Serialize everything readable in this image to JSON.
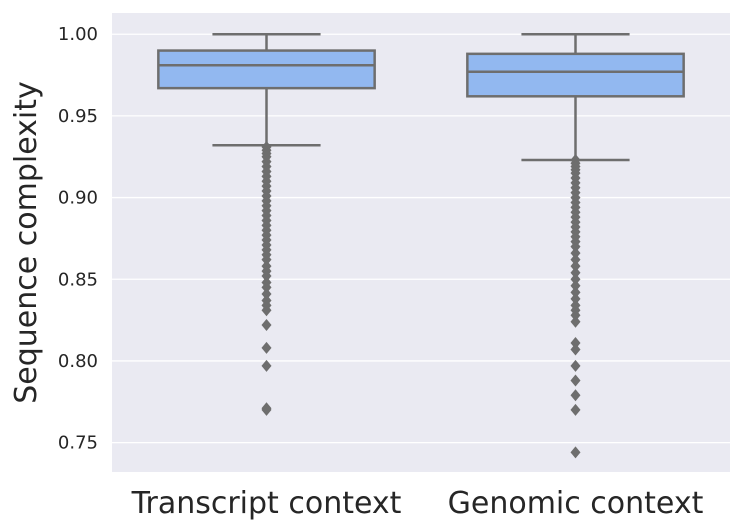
{
  "chart_data": {
    "type": "box",
    "title": "",
    "xlabel": "",
    "ylabel": "Sequence complexity",
    "ylim": [
      0.732,
      1.013
    ],
    "yticks": [
      "0.75",
      "0.80",
      "0.85",
      "0.90",
      "0.95",
      "1.00"
    ],
    "grid": true,
    "colors": {
      "plot_background": "#EAEAF2",
      "grid": "#FFFFFF",
      "box_fill": "#92B8F0",
      "box_line": "#6E6E6E"
    },
    "series": [
      {
        "category": "Transcript context",
        "whisker_low": 0.932,
        "q1": 0.967,
        "median": 0.981,
        "q3": 0.99,
        "whisker_high": 1.0,
        "outliers": [
          0.931,
          0.929,
          0.927,
          0.925,
          0.922,
          0.919,
          0.916,
          0.913,
          0.91,
          0.907,
          0.904,
          0.901,
          0.898,
          0.895,
          0.892,
          0.889,
          0.886,
          0.883,
          0.88,
          0.877,
          0.874,
          0.871,
          0.868,
          0.865,
          0.862,
          0.858,
          0.855,
          0.852,
          0.848,
          0.845,
          0.841,
          0.837,
          0.834,
          0.831,
          0.822,
          0.808,
          0.797,
          0.771,
          0.77
        ]
      },
      {
        "category": "Genomic context",
        "whisker_low": 0.923,
        "q1": 0.962,
        "median": 0.977,
        "q3": 0.988,
        "whisker_high": 1.0,
        "outliers": [
          0.923,
          0.921,
          0.919,
          0.917,
          0.915,
          0.912,
          0.909,
          0.906,
          0.903,
          0.9,
          0.897,
          0.894,
          0.891,
          0.888,
          0.885,
          0.882,
          0.879,
          0.876,
          0.873,
          0.87,
          0.866,
          0.862,
          0.858,
          0.854,
          0.85,
          0.846,
          0.842,
          0.838,
          0.834,
          0.831,
          0.828,
          0.824,
          0.811,
          0.807,
          0.797,
          0.788,
          0.779,
          0.77,
          0.744
        ]
      }
    ]
  }
}
